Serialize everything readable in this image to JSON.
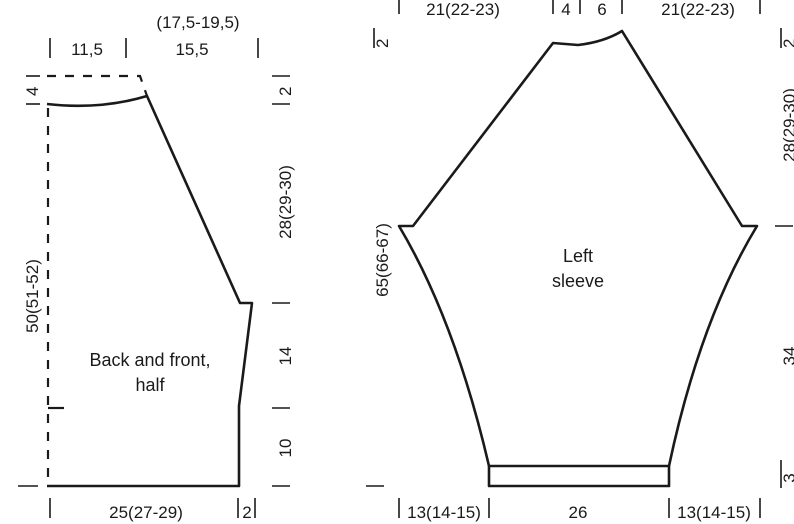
{
  "back_front": {
    "label_line1": "Back and front,",
    "label_line2": "half",
    "top_left_width": "11,5",
    "top_right_width": "15,5",
    "top_total": "(17,5-19,5)",
    "neck_depth": "4",
    "shoulder_small": "2",
    "armhole_height": "28(29-30)",
    "side_upper": "14",
    "side_lower": "10",
    "total_length": "50(51-52)",
    "bottom_width": "25(27-29)",
    "bottom_small": "2"
  },
  "sleeve": {
    "label_line1": "Left",
    "label_line2": "sleeve",
    "top_left": "21(22-23)",
    "top_mid1": "4",
    "top_mid2": "6",
    "top_right": "21(22-23)",
    "left_top_small": "2",
    "right_top_small": "2",
    "raglan_height": "28(29-30)",
    "total_length": "65(66-67)",
    "lower_length": "34",
    "cuff_height": "3",
    "bottom_left": "13(14-15)",
    "bottom_mid": "26",
    "bottom_right": "13(14-15)"
  }
}
